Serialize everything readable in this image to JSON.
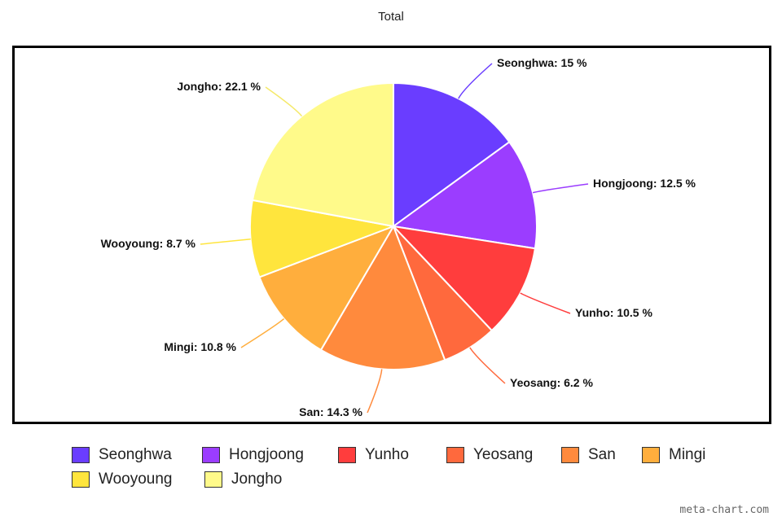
{
  "chart_data": {
    "type": "pie",
    "title": "Total",
    "categories": [
      "Seonghwa",
      "Hongjoong",
      "Yunho",
      "Yeosang",
      "San",
      "Mingi",
      "Wooyoung",
      "Jongho"
    ],
    "values": [
      15,
      12.5,
      10.5,
      6.2,
      14.3,
      10.8,
      8.7,
      22.1
    ],
    "slice_labels": [
      "Seonghwa: 15 %",
      "Hongjoong: 12.5 %",
      "Yunho: 10.5 %",
      "Yeosang: 6.2 %",
      "San: 14.3 %",
      "Mingi: 10.8 %",
      "Wooyoung: 8.7 %",
      "Jongho: 22.1 %"
    ],
    "colors": [
      "#6a3dff",
      "#9b3dff",
      "#ff3d3d",
      "#ff693d",
      "#ff8a3d",
      "#ffae3d",
      "#ffe53d",
      "#fffa8a"
    ],
    "legend_position": "bottom"
  },
  "watermark": "meta-chart.com"
}
